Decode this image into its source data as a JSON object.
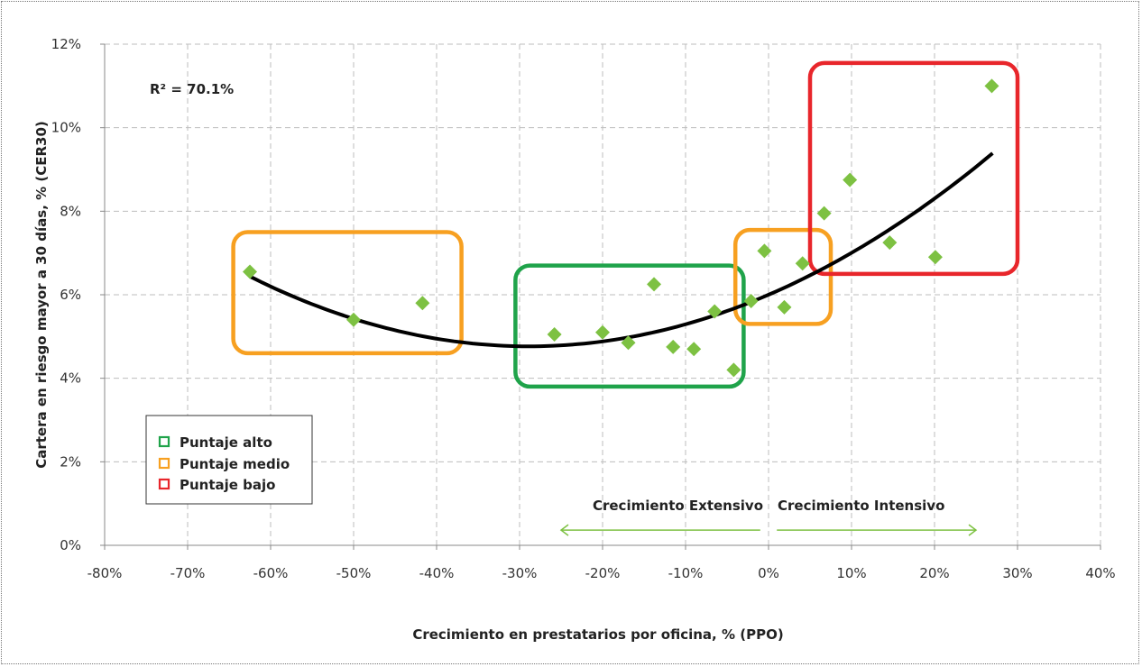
{
  "chart_data": {
    "type": "scatter",
    "title": "",
    "xlabel": "Crecimiento en prestatarios por oficina, % (PPO)",
    "ylabel": "Cartera en riesgo mayor a 30 días, % (CER30)",
    "xlim": [
      -80,
      40
    ],
    "ylim": [
      0,
      12
    ],
    "x_ticks": [
      -80,
      -70,
      -60,
      -50,
      -40,
      -30,
      -20,
      -10,
      0,
      10,
      20,
      30,
      40
    ],
    "x_tick_labels": [
      "-80%",
      "-70%",
      "-60%",
      "-50%",
      "-40%",
      "-30%",
      "-20%",
      "-10%",
      "0%",
      "10%",
      "20%",
      "30%",
      "40%"
    ],
    "y_ticks": [
      0,
      2,
      4,
      6,
      8,
      10,
      12
    ],
    "y_tick_labels": [
      "0%",
      "2%",
      "4%",
      "6%",
      "8%",
      "10%",
      "12%"
    ],
    "grid": true,
    "points": [
      {
        "x": -62.5,
        "y": 6.55
      },
      {
        "x": -50.0,
        "y": 5.4
      },
      {
        "x": -41.7,
        "y": 5.8
      },
      {
        "x": -25.8,
        "y": 5.05
      },
      {
        "x": -20.0,
        "y": 5.1
      },
      {
        "x": -16.9,
        "y": 4.85
      },
      {
        "x": -13.8,
        "y": 6.25
      },
      {
        "x": -11.5,
        "y": 4.75
      },
      {
        "x": -9.0,
        "y": 4.7
      },
      {
        "x": -6.5,
        "y": 5.6
      },
      {
        "x": -4.2,
        "y": 4.2
      },
      {
        "x": -2.1,
        "y": 5.85
      },
      {
        "x": -0.5,
        "y": 7.05
      },
      {
        "x": 1.9,
        "y": 5.7
      },
      {
        "x": 4.1,
        "y": 6.75
      },
      {
        "x": 6.7,
        "y": 7.95
      },
      {
        "x": 9.8,
        "y": 8.75
      },
      {
        "x": 14.6,
        "y": 7.25
      },
      {
        "x": 20.1,
        "y": 6.9
      },
      {
        "x": 26.9,
        "y": 11.0
      }
    ],
    "marker_color": "#7dc142",
    "trendline": {
      "type": "polynomial",
      "coefficients": [
        6.0,
        0.0855,
        0.00148
      ],
      "x_range": [
        -62.5,
        27.0
      ],
      "color": "#000000"
    },
    "r_squared_label": "R² = 70.1%",
    "groups": [
      {
        "label": "Puntaje alto",
        "color": "#1fa34a",
        "x_range": [
          -30.5,
          -3.0
        ],
        "y_range": [
          3.8,
          6.7
        ]
      },
      {
        "label": "Puntaje medio",
        "color": "#f7a021",
        "x_range": [
          -64.5,
          -37.0
        ],
        "y_range": [
          4.6,
          7.5
        ]
      },
      {
        "label": "Puntaje medio",
        "color": "#f7a021",
        "x_range": [
          -4.0,
          7.5
        ],
        "y_range": [
          5.3,
          7.55
        ]
      },
      {
        "label": "Puntaje bajo",
        "color": "#e8262b",
        "x_range": [
          5.0,
          30.0
        ],
        "y_range": [
          6.5,
          11.55
        ]
      }
    ],
    "legend": {
      "position": "bottom-left",
      "items": [
        {
          "label": "Puntaje alto",
          "color": "#1fa34a"
        },
        {
          "label": "Puntaje medio",
          "color": "#f7a021"
        },
        {
          "label": "Puntaje bajo",
          "color": "#e8262b"
        }
      ]
    },
    "annotations": {
      "extensive": {
        "label": "Crecimiento Extensivo",
        "x_range": [
          -25,
          -1
        ],
        "y": 0.45
      },
      "intensive": {
        "label": "Crecimiento Intensivo",
        "x_range": [
          1,
          25
        ],
        "y": 0.45
      },
      "arrow_color": "#7dc142"
    }
  }
}
